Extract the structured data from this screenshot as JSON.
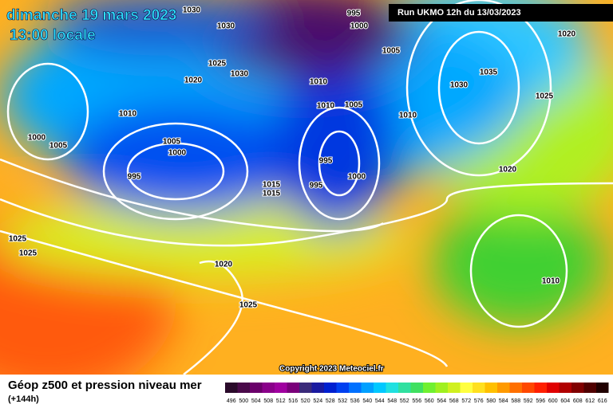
{
  "header": {
    "date": "dimanche 19 mars 2023",
    "time": "13:00 locale",
    "run": "Run UKMO 12h du 13/03/2023"
  },
  "isobar_labels": [
    1030,
    1030,
    995,
    1000,
    1005,
    1020,
    1025,
    1030,
    1020,
    1010,
    1035,
    1030,
    1025,
    1010,
    1005,
    1010,
    1010,
    1000,
    1005,
    1005,
    1000,
    995,
    995,
    1020,
    1000,
    995,
    1015,
    1015,
    1025,
    1025,
    1020,
    1010,
    1025
  ],
  "copyright": "Copyright 2023 Meteociel.fr",
  "footer": {
    "title": "Géop z500 et pression niveau mer",
    "lead": "(+144h)"
  },
  "colorbar": {
    "ticks": [
      496,
      500,
      504,
      508,
      512,
      516,
      520,
      524,
      528,
      532,
      536,
      540,
      544,
      548,
      552,
      556,
      560,
      564,
      568,
      572,
      576,
      580,
      584,
      588,
      592,
      596,
      600,
      604,
      608,
      612,
      616
    ],
    "colors": [
      "#2a0a2a",
      "#4a0a4a",
      "#6a006a",
      "#8a008a",
      "#a000a0",
      "#7a007a",
      "#3a2a7a",
      "#1a1aa0",
      "#0020d0",
      "#0040f0",
      "#0070ff",
      "#00a0ff",
      "#00c8ff",
      "#20e0e0",
      "#30e0a0",
      "#40e060",
      "#70f030",
      "#a0f020",
      "#d0f020",
      "#ffff40",
      "#ffe020",
      "#ffc000",
      "#ff9a00",
      "#ff7000",
      "#ff4800",
      "#ff2000",
      "#e00000",
      "#b00000",
      "#800000",
      "#500000",
      "#200000"
    ]
  }
}
